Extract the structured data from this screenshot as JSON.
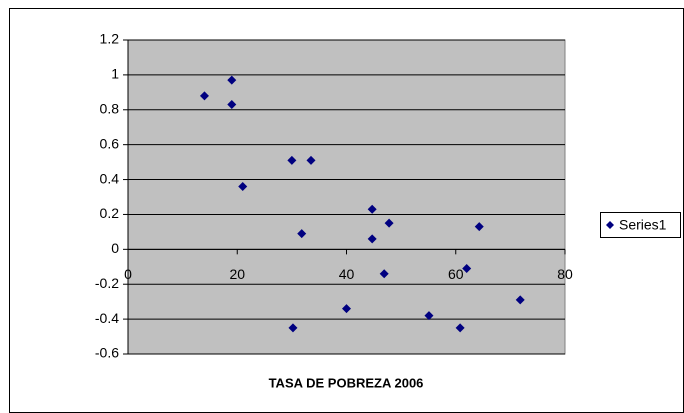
{
  "chart_data": {
    "type": "scatter",
    "x_label": "TASA DE POBREZA 2006",
    "series": [
      {
        "name": "Series1",
        "color": "#000080",
        "x": [
          14,
          19,
          19,
          21,
          30,
          33.5,
          31.8,
          30.2,
          40,
          44.7,
          44.7,
          47.8,
          46.9,
          55.1,
          60.8,
          62,
          64.3,
          71.8
        ],
        "values": [
          0.88,
          0.97,
          0.83,
          0.36,
          0.51,
          0.51,
          0.09,
          -0.45,
          -0.34,
          0.23,
          0.06,
          0.15,
          -0.14,
          -0.38,
          -0.45,
          -0.11,
          0.13,
          -0.29
        ]
      }
    ],
    "xlim": [
      0,
      80
    ],
    "xticks": [
      0,
      20,
      40,
      60,
      80
    ],
    "ylim": [
      -0.6,
      1.2
    ],
    "yticks": [
      -0.6,
      -0.4,
      -0.2,
      0,
      0.2,
      0.4,
      0.6,
      0.8,
      1,
      1.2
    ],
    "grid": true,
    "legend": "right"
  }
}
